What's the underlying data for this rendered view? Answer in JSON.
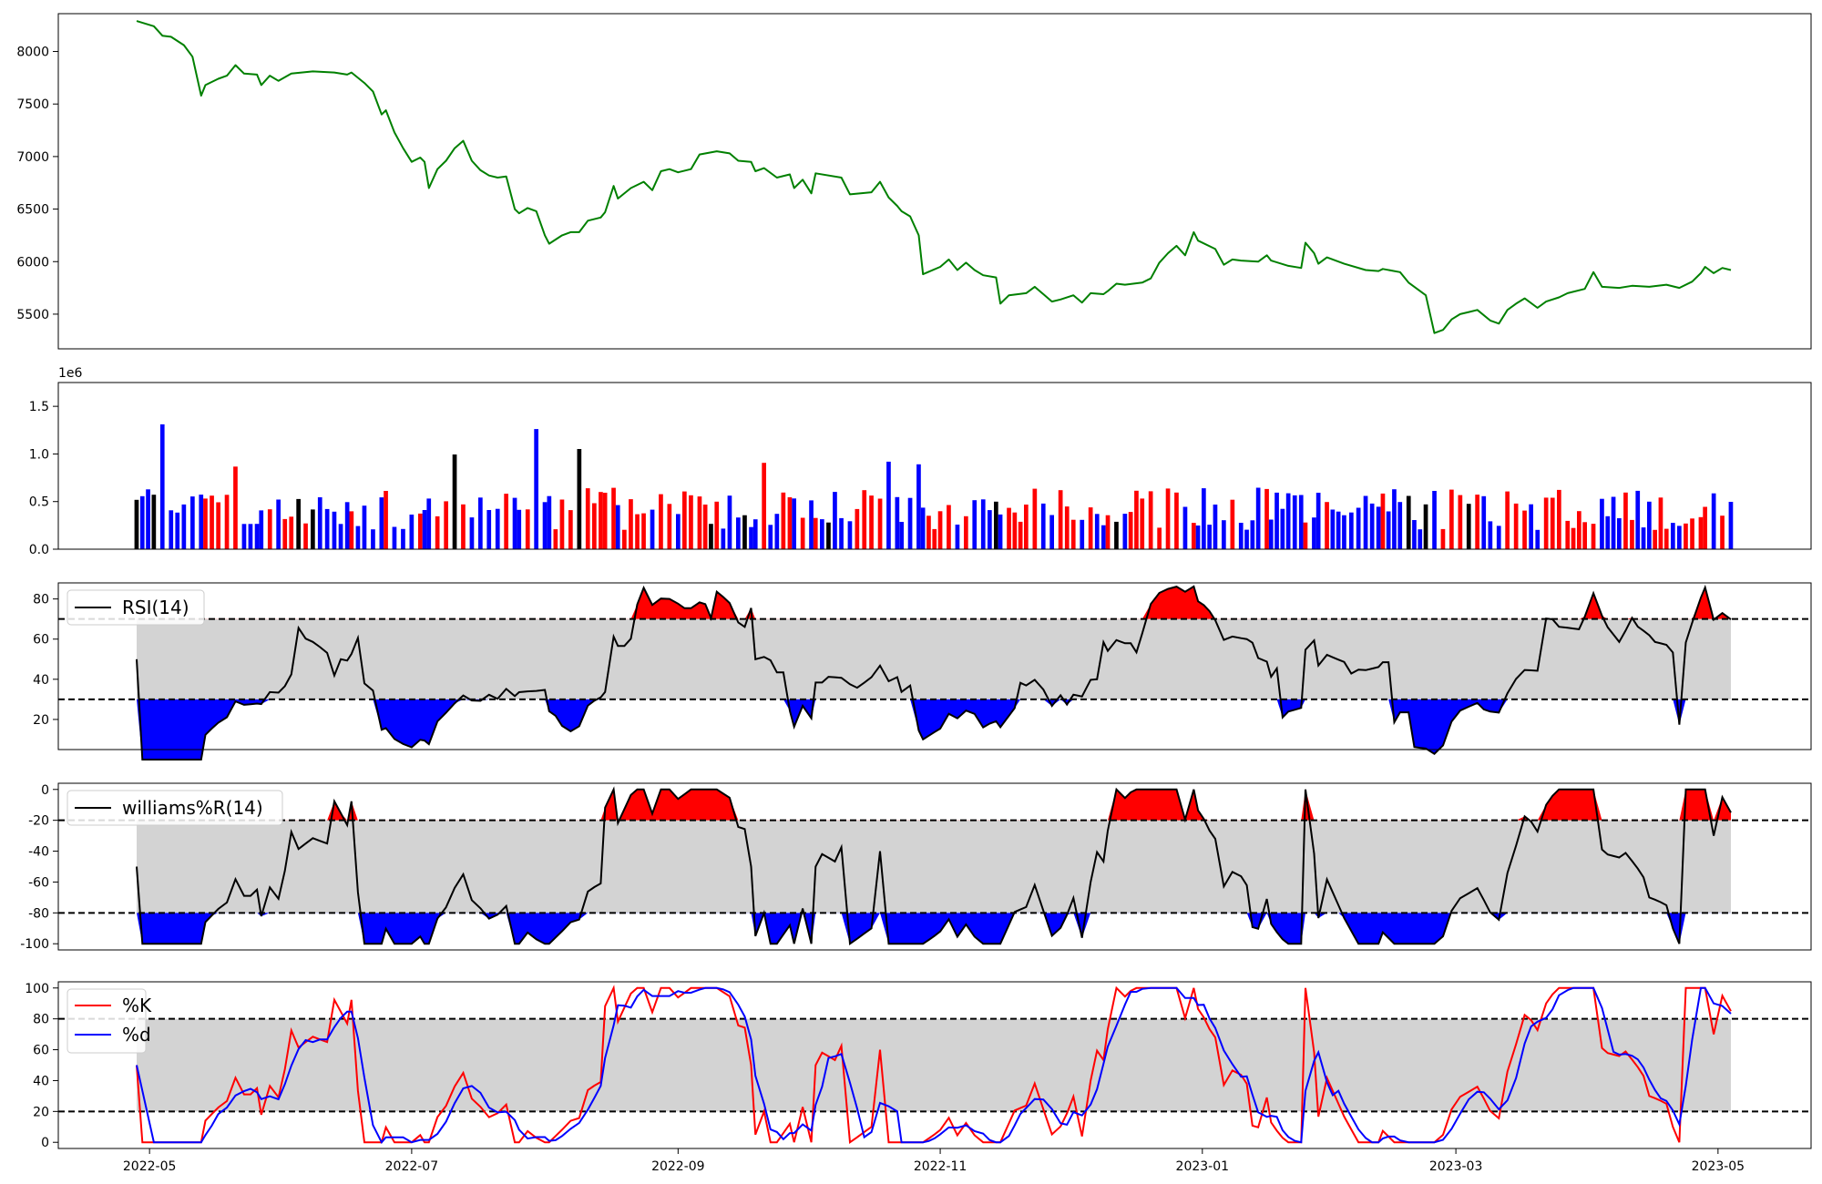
{
  "figure": {
    "background": "#ffffff"
  },
  "x_ticks": [
    "2022-05",
    "2022-07",
    "2022-09",
    "2022-11",
    "2023-01",
    "2023-03",
    "2023-05"
  ],
  "chart_data": [
    {
      "type": "line",
      "name": "price",
      "x_range": [
        "2022-04-28",
        "2023-05-04"
      ],
      "ylim": [
        5170,
        8360
      ],
      "yticks": [
        "5500",
        "6000",
        "6500",
        "7000",
        "7500",
        "8000"
      ],
      "color": "#008000",
      "series": [
        {
          "points": [
            [
              "2022-04-28",
              8290
            ],
            [
              "2022-05-02",
              8240
            ],
            [
              "2022-05-04",
              8150
            ],
            [
              "2022-05-06",
              8140
            ],
            [
              "2022-05-09",
              8060
            ],
            [
              "2022-05-11",
              7950
            ],
            [
              "2022-05-13",
              7580
            ],
            [
              "2022-05-14",
              7680
            ],
            [
              "2022-05-17",
              7740
            ],
            [
              "2022-05-19",
              7770
            ],
            [
              "2022-05-21",
              7870
            ],
            [
              "2022-05-23",
              7790
            ],
            [
              "2022-05-26",
              7780
            ],
            [
              "2022-05-27",
              7680
            ],
            [
              "2022-05-29",
              7770
            ],
            [
              "2022-05-31",
              7720
            ],
            [
              "2022-06-03",
              7790
            ],
            [
              "2022-06-08",
              7810
            ],
            [
              "2022-06-13",
              7800
            ],
            [
              "2022-06-16",
              7780
            ],
            [
              "2022-06-17",
              7800
            ],
            [
              "2022-06-20",
              7700
            ],
            [
              "2022-06-22",
              7620
            ],
            [
              "2022-06-24",
              7400
            ],
            [
              "2022-06-25",
              7440
            ],
            [
              "2022-06-27",
              7230
            ],
            [
              "2022-06-29",
              7080
            ],
            [
              "2022-07-01",
              6950
            ],
            [
              "2022-07-03",
              6990
            ],
            [
              "2022-07-04",
              6950
            ],
            [
              "2022-07-05",
              6700
            ],
            [
              "2022-07-07",
              6880
            ],
            [
              "2022-07-09",
              6960
            ],
            [
              "2022-07-11",
              7080
            ],
            [
              "2022-07-13",
              7150
            ],
            [
              "2022-07-15",
              6960
            ],
            [
              "2022-07-17",
              6870
            ],
            [
              "2022-07-19",
              6820
            ],
            [
              "2022-07-21",
              6800
            ],
            [
              "2022-07-23",
              6810
            ],
            [
              "2022-07-25",
              6500
            ],
            [
              "2022-07-26",
              6460
            ],
            [
              "2022-07-28",
              6510
            ],
            [
              "2022-07-30",
              6480
            ],
            [
              "2022-08-01",
              6250
            ],
            [
              "2022-08-02",
              6170
            ],
            [
              "2022-08-05",
              6250
            ],
            [
              "2022-08-07",
              6280
            ],
            [
              "2022-08-09",
              6280
            ],
            [
              "2022-08-11",
              6390
            ],
            [
              "2022-08-14",
              6420
            ],
            [
              "2022-08-15",
              6470
            ],
            [
              "2022-08-17",
              6720
            ],
            [
              "2022-08-18",
              6600
            ],
            [
              "2022-08-21",
              6700
            ],
            [
              "2022-08-24",
              6760
            ],
            [
              "2022-08-26",
              6680
            ],
            [
              "2022-08-28",
              6860
            ],
            [
              "2022-08-30",
              6880
            ],
            [
              "2022-09-01",
              6850
            ],
            [
              "2022-09-04",
              6880
            ],
            [
              "2022-09-06",
              7020
            ],
            [
              "2022-09-10",
              7050
            ],
            [
              "2022-09-13",
              7030
            ],
            [
              "2022-09-15",
              6960
            ],
            [
              "2022-09-18",
              6950
            ],
            [
              "2022-09-19",
              6860
            ],
            [
              "2022-09-21",
              6890
            ],
            [
              "2022-09-24",
              6800
            ],
            [
              "2022-09-27",
              6830
            ],
            [
              "2022-09-28",
              6700
            ],
            [
              "2022-09-30",
              6780
            ],
            [
              "2022-10-02",
              6650
            ],
            [
              "2022-10-03",
              6840
            ],
            [
              "2022-10-09",
              6800
            ],
            [
              "2022-10-11",
              6640
            ],
            [
              "2022-10-16",
              6660
            ],
            [
              "2022-10-18",
              6760
            ],
            [
              "2022-10-20",
              6610
            ],
            [
              "2022-10-22",
              6530
            ],
            [
              "2022-10-23",
              6480
            ],
            [
              "2022-10-25",
              6430
            ],
            [
              "2022-10-27",
              6250
            ],
            [
              "2022-10-28",
              5880
            ],
            [
              "2022-11-01",
              5950
            ],
            [
              "2022-11-03",
              6020
            ],
            [
              "2022-11-05",
              5920
            ],
            [
              "2022-11-07",
              5990
            ],
            [
              "2022-11-09",
              5920
            ],
            [
              "2022-11-11",
              5870
            ],
            [
              "2022-11-14",
              5850
            ],
            [
              "2022-11-15",
              5600
            ],
            [
              "2022-11-17",
              5680
            ],
            [
              "2022-11-21",
              5700
            ],
            [
              "2022-11-23",
              5760
            ],
            [
              "2022-11-25",
              5690
            ],
            [
              "2022-11-27",
              5620
            ],
            [
              "2022-11-29",
              5640
            ],
            [
              "2022-12-02",
              5680
            ],
            [
              "2022-12-04",
              5610
            ],
            [
              "2022-12-06",
              5700
            ],
            [
              "2022-12-09",
              5690
            ],
            [
              "2022-12-10",
              5720
            ],
            [
              "2022-12-12",
              5790
            ],
            [
              "2022-12-14",
              5780
            ],
            [
              "2022-12-18",
              5800
            ],
            [
              "2022-12-20",
              5840
            ],
            [
              "2022-12-22",
              5990
            ],
            [
              "2022-12-24",
              6080
            ],
            [
              "2022-12-26",
              6150
            ],
            [
              "2022-12-28",
              6060
            ],
            [
              "2022-12-30",
              6280
            ],
            [
              "2022-12-31",
              6200
            ],
            [
              "2023-01-04",
              6120
            ],
            [
              "2023-01-06",
              5970
            ],
            [
              "2023-01-08",
              6020
            ],
            [
              "2023-01-10",
              6010
            ],
            [
              "2023-01-14",
              6000
            ],
            [
              "2023-01-16",
              6060
            ],
            [
              "2023-01-17",
              6010
            ],
            [
              "2023-01-21",
              5960
            ],
            [
              "2023-01-24",
              5940
            ],
            [
              "2023-01-25",
              6180
            ],
            [
              "2023-01-27",
              6080
            ],
            [
              "2023-01-28",
              5980
            ],
            [
              "2023-01-30",
              6040
            ],
            [
              "2023-02-03",
              5980
            ],
            [
              "2023-02-08",
              5920
            ],
            [
              "2023-02-11",
              5910
            ],
            [
              "2023-02-12",
              5930
            ],
            [
              "2023-02-16",
              5900
            ],
            [
              "2023-02-18",
              5800
            ],
            [
              "2023-02-22",
              5680
            ],
            [
              "2023-02-24",
              5320
            ],
            [
              "2023-02-26",
              5350
            ],
            [
              "2023-02-28",
              5450
            ],
            [
              "2023-03-02",
              5500
            ],
            [
              "2023-03-04",
              5520
            ],
            [
              "2023-03-06",
              5540
            ],
            [
              "2023-03-09",
              5440
            ],
            [
              "2023-03-11",
              5410
            ],
            [
              "2023-03-13",
              5540
            ],
            [
              "2023-03-15",
              5600
            ],
            [
              "2023-03-17",
              5650
            ],
            [
              "2023-03-20",
              5560
            ],
            [
              "2023-03-22",
              5620
            ],
            [
              "2023-03-25",
              5660
            ],
            [
              "2023-03-27",
              5700
            ],
            [
              "2023-03-31",
              5740
            ],
            [
              "2023-04-02",
              5900
            ],
            [
              "2023-04-04",
              5760
            ],
            [
              "2023-04-08",
              5750
            ],
            [
              "2023-04-11",
              5770
            ],
            [
              "2023-04-15",
              5760
            ],
            [
              "2023-04-19",
              5780
            ],
            [
              "2023-04-22",
              5750
            ],
            [
              "2023-04-25",
              5810
            ],
            [
              "2023-04-27",
              5890
            ],
            [
              "2023-04-28",
              5950
            ],
            [
              "2023-04-30",
              5890
            ],
            [
              "2023-05-02",
              5940
            ],
            [
              "2023-05-04",
              5920
            ]
          ]
        }
      ]
    },
    {
      "type": "bar",
      "name": "volume",
      "offset_text": "1e6",
      "ylim": [
        0,
        1750000
      ],
      "yticks": [
        "0.0",
        "0.5",
        "1.0",
        "1.5"
      ],
      "colors": {
        "up": "#ff0000",
        "down": "#0000ff",
        "flat": "#000000"
      }
    },
    {
      "type": "line",
      "name": "rsi",
      "legend": [
        "RSI(14)"
      ],
      "ylim": [
        5,
        88
      ],
      "yticks": [
        "20",
        "40",
        "60",
        "80"
      ],
      "bands": {
        "upper": 70,
        "lower": 30
      },
      "fills": {
        "above": "#ff0000",
        "below": "#0000ff",
        "band": "#d3d3d3"
      }
    },
    {
      "type": "line",
      "name": "williams",
      "legend": [
        "williams%R(14)"
      ],
      "ylim": [
        -104,
        4
      ],
      "yticks": [
        "0",
        "-20",
        "-40",
        "-60",
        "-80",
        "-100"
      ],
      "bands": {
        "upper": -20,
        "lower": -80
      },
      "fills": {
        "above": "#ff0000",
        "below": "#0000ff",
        "band": "#d3d3d3"
      }
    },
    {
      "type": "line",
      "name": "stochastic",
      "legend": [
        "%K",
        "%d"
      ],
      "series_colors": [
        "#ff0000",
        "#0000ff"
      ],
      "ylim": [
        -4,
        104
      ],
      "yticks": [
        "0",
        "20",
        "40",
        "60",
        "80",
        "100"
      ],
      "bands": {
        "upper": 80,
        "lower": 20
      }
    }
  ]
}
